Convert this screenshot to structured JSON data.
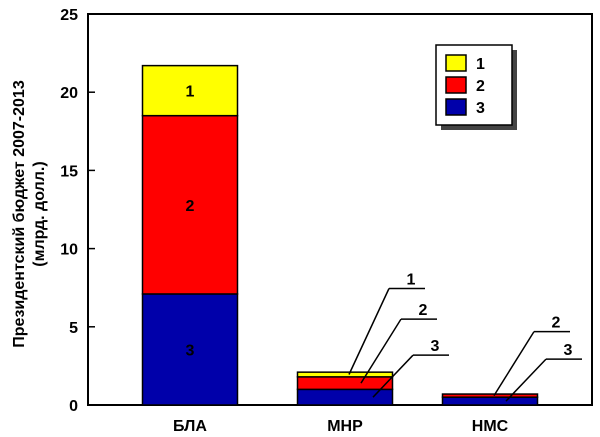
{
  "chart_data": {
    "type": "bar",
    "stacked": true,
    "categories": [
      "БЛА",
      "МНР",
      "НМС"
    ],
    "series": [
      {
        "name": "1",
        "color": "#ffff00",
        "values": [
          3.2,
          0.3,
          0.0
        ]
      },
      {
        "name": "2",
        "color": "#ff0000",
        "values": [
          11.4,
          0.8,
          0.2
        ]
      },
      {
        "name": "3",
        "color": "#0000aa",
        "values": [
          7.1,
          1.0,
          0.5
        ]
      }
    ],
    "title": "",
    "ylabel": "Президентский бюджет 2007-2013",
    "ylabel2": "(млрд. долл.)",
    "xlabel": "",
    "ylim": [
      0,
      25
    ],
    "yticks": [
      0,
      5,
      10,
      15,
      20,
      25
    ],
    "grid": false,
    "legend": {
      "position": "top-right",
      "boxed": true,
      "shadow": true
    },
    "in_bar_labels": [
      {
        "category": "БЛА",
        "series": "1",
        "text": "1"
      },
      {
        "category": "БЛА",
        "series": "2",
        "text": "2"
      },
      {
        "category": "БЛА",
        "series": "3",
        "text": "3"
      }
    ],
    "callouts": [
      {
        "category": "МНР",
        "series": "1",
        "text": "1"
      },
      {
        "category": "МНР",
        "series": "2",
        "text": "2"
      },
      {
        "category": "МНР",
        "series": "3",
        "text": "3"
      },
      {
        "category": "НМС",
        "series": "2",
        "text": "2"
      },
      {
        "category": "НМС",
        "series": "3",
        "text": "3"
      }
    ]
  }
}
